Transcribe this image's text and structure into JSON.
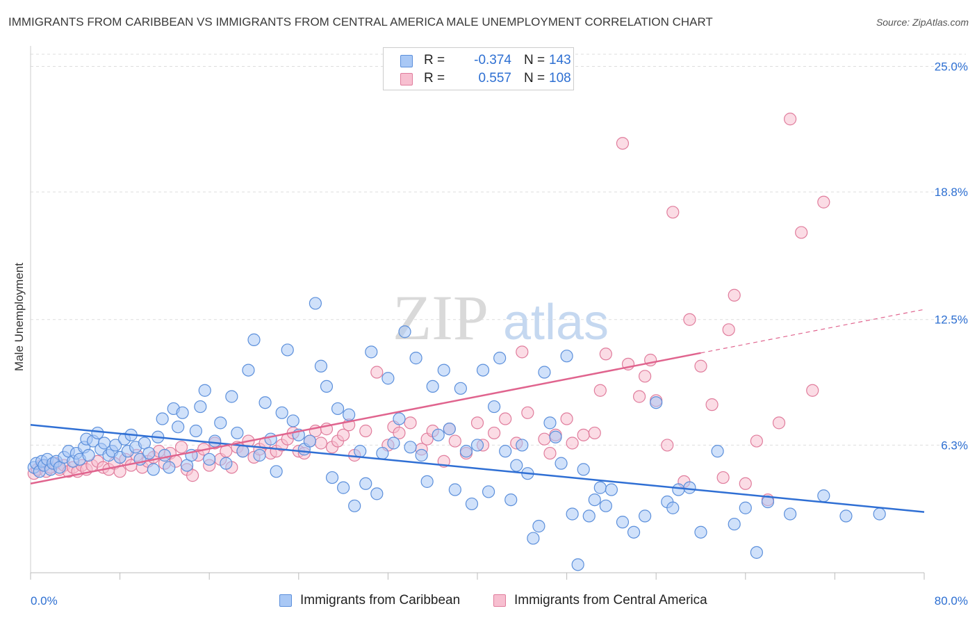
{
  "title": "IMMIGRANTS FROM CARIBBEAN VS IMMIGRANTS FROM CENTRAL AMERICA MALE UNEMPLOYMENT CORRELATION CHART",
  "source": "Source: ZipAtlas.com",
  "watermark": {
    "zip": "ZIP",
    "atlas": "atlas"
  },
  "legend": {
    "rows": [
      {
        "r_label": "R =",
        "r_value": "-0.374",
        "n_label": "N =",
        "n_value": "143"
      },
      {
        "r_label": "R =",
        "r_value": "0.557",
        "n_label": "N =",
        "n_value": "108"
      }
    ]
  },
  "chart_data": {
    "type": "scatter",
    "title": "IMMIGRANTS FROM CARIBBEAN VS IMMIGRANTS FROM CENTRAL AMERICA MALE UNEMPLOYMENT CORRELATION CHART",
    "xlabel": "",
    "ylabel": "Male Unemployment",
    "xlim": [
      0,
      80
    ],
    "ylim": [
      0,
      25.6
    ],
    "x_tick_labels": [
      "0.0%",
      "80.0%"
    ],
    "y_ticks": [
      6.3,
      12.5,
      18.8,
      25.0
    ],
    "y_tick_labels": [
      "6.3%",
      "12.5%",
      "18.8%",
      "25.0%"
    ],
    "grid": "horizontal dashed",
    "legend_position": "top-center",
    "colors": {
      "caribbean_fill": "#a9c8f5",
      "caribbean_stroke": "#5b8fdb",
      "caribbean_line": "#2f6fd4",
      "central_fill": "#f7bfd0",
      "central_stroke": "#e07c9c",
      "central_line": "#e0648e",
      "tick_text": "#2d6fd2"
    },
    "series": [
      {
        "name": "Immigrants from Caribbean",
        "trend": {
          "x": [
            0,
            80
          ],
          "y": [
            7.3,
            3.0
          ],
          "solid_to": 80
        },
        "points": [
          [
            0.3,
            5.2
          ],
          [
            0.5,
            5.4
          ],
          [
            0.8,
            5.0
          ],
          [
            1,
            5.5
          ],
          [
            1.2,
            5.3
          ],
          [
            1.5,
            5.6
          ],
          [
            1.8,
            5.1
          ],
          [
            2,
            5.4
          ],
          [
            2.3,
            5.5
          ],
          [
            2.6,
            5.2
          ],
          [
            3,
            5.7
          ],
          [
            3.4,
            6.0
          ],
          [
            3.8,
            5.5
          ],
          [
            4.1,
            5.9
          ],
          [
            4.4,
            5.6
          ],
          [
            4.8,
            6.2
          ],
          [
            5,
            6.6
          ],
          [
            5.2,
            5.8
          ],
          [
            5.6,
            6.5
          ],
          [
            6,
            6.9
          ],
          [
            6.3,
            6.1
          ],
          [
            6.6,
            6.4
          ],
          [
            7,
            5.8
          ],
          [
            7.3,
            6.0
          ],
          [
            7.6,
            6.3
          ],
          [
            8,
            5.7
          ],
          [
            8.4,
            6.6
          ],
          [
            8.7,
            6.0
          ],
          [
            9,
            6.8
          ],
          [
            9.4,
            6.2
          ],
          [
            9.8,
            5.6
          ],
          [
            10.2,
            6.4
          ],
          [
            10.6,
            5.9
          ],
          [
            11,
            5.1
          ],
          [
            11.4,
            6.7
          ],
          [
            11.8,
            7.6
          ],
          [
            12,
            5.8
          ],
          [
            12.4,
            5.2
          ],
          [
            12.8,
            8.1
          ],
          [
            13.2,
            7.2
          ],
          [
            13.6,
            7.9
          ],
          [
            14,
            5.3
          ],
          [
            14.4,
            5.8
          ],
          [
            14.8,
            7.0
          ],
          [
            15.2,
            8.2
          ],
          [
            15.6,
            9.0
          ],
          [
            16,
            5.6
          ],
          [
            16.5,
            6.5
          ],
          [
            17,
            7.4
          ],
          [
            17.5,
            5.4
          ],
          [
            18,
            8.7
          ],
          [
            18.5,
            6.9
          ],
          [
            19,
            6.0
          ],
          [
            19.5,
            10.0
          ],
          [
            20,
            11.5
          ],
          [
            20.5,
            5.8
          ],
          [
            21,
            8.4
          ],
          [
            21.5,
            6.6
          ],
          [
            22,
            5.0
          ],
          [
            22.5,
            7.9
          ],
          [
            23,
            11.0
          ],
          [
            23.5,
            7.5
          ],
          [
            24,
            6.8
          ],
          [
            24.5,
            6.1
          ],
          [
            25,
            6.5
          ],
          [
            25.5,
            13.3
          ],
          [
            26,
            10.2
          ],
          [
            26.5,
            9.2
          ],
          [
            27,
            4.7
          ],
          [
            27.5,
            8.1
          ],
          [
            28,
            4.2
          ],
          [
            28.5,
            7.8
          ],
          [
            29,
            3.3
          ],
          [
            29.5,
            6.0
          ],
          [
            30,
            4.4
          ],
          [
            30.5,
            10.9
          ],
          [
            31,
            3.9
          ],
          [
            31.5,
            5.9
          ],
          [
            32,
            9.6
          ],
          [
            32.5,
            6.4
          ],
          [
            33,
            7.6
          ],
          [
            33.5,
            11.9
          ],
          [
            34,
            6.2
          ],
          [
            34.5,
            10.6
          ],
          [
            35,
            5.8
          ],
          [
            35.5,
            4.5
          ],
          [
            36,
            9.2
          ],
          [
            36.5,
            6.8
          ],
          [
            37,
            10.0
          ],
          [
            37.5,
            7.1
          ],
          [
            38,
            4.1
          ],
          [
            38.5,
            9.1
          ],
          [
            39,
            6.0
          ],
          [
            39.5,
            3.4
          ],
          [
            40,
            6.3
          ],
          [
            40.5,
            10.0
          ],
          [
            41,
            4.0
          ],
          [
            41.5,
            8.2
          ],
          [
            42,
            10.6
          ],
          [
            42.5,
            6.0
          ],
          [
            43,
            3.6
          ],
          [
            43.5,
            5.3
          ],
          [
            44,
            6.3
          ],
          [
            44.5,
            4.9
          ],
          [
            45,
            1.7
          ],
          [
            45.5,
            2.3
          ],
          [
            46,
            9.9
          ],
          [
            46.5,
            7.4
          ],
          [
            47,
            6.7
          ],
          [
            47.5,
            5.4
          ],
          [
            48,
            10.7
          ],
          [
            48.5,
            2.9
          ],
          [
            49,
            0.4
          ],
          [
            49.5,
            5.1
          ],
          [
            50,
            2.8
          ],
          [
            50.5,
            3.6
          ],
          [
            51,
            4.2
          ],
          [
            51.5,
            3.3
          ],
          [
            52,
            4.1
          ],
          [
            53,
            2.5
          ],
          [
            54,
            2.0
          ],
          [
            55,
            2.8
          ],
          [
            56,
            8.4
          ],
          [
            57,
            3.5
          ],
          [
            57.5,
            3.2
          ],
          [
            58,
            4.1
          ],
          [
            59,
            4.2
          ],
          [
            60,
            2.0
          ],
          [
            61.5,
            6.0
          ],
          [
            63,
            2.4
          ],
          [
            64,
            3.2
          ],
          [
            65,
            1.0
          ],
          [
            66,
            3.5
          ],
          [
            68,
            2.9
          ],
          [
            71,
            3.8
          ],
          [
            73,
            2.8
          ],
          [
            76,
            2.9
          ]
        ]
      },
      {
        "name": "Immigrants from Central America",
        "trend": {
          "x": [
            0,
            80
          ],
          "y": [
            4.4,
            13.0
          ],
          "solid_to": 60
        },
        "points": [
          [
            0.3,
            4.9
          ],
          [
            0.6,
            5.1
          ],
          [
            1,
            5.3
          ],
          [
            1.4,
            5.0
          ],
          [
            1.8,
            5.2
          ],
          [
            2.2,
            5.4
          ],
          [
            2.6,
            5.1
          ],
          [
            3,
            5.3
          ],
          [
            3.4,
            5.0
          ],
          [
            3.8,
            5.2
          ],
          [
            4.2,
            5.0
          ],
          [
            4.6,
            5.3
          ],
          [
            5,
            5.1
          ],
          [
            5.5,
            5.3
          ],
          [
            6,
            5.5
          ],
          [
            6.5,
            5.2
          ],
          [
            7,
            5.1
          ],
          [
            7.5,
            5.4
          ],
          [
            8,
            5.0
          ],
          [
            8.5,
            5.6
          ],
          [
            9,
            5.3
          ],
          [
            9.5,
            5.8
          ],
          [
            10,
            5.2
          ],
          [
            10.5,
            5.5
          ],
          [
            11,
            5.7
          ],
          [
            11.5,
            6.0
          ],
          [
            12,
            5.4
          ],
          [
            12.5,
            5.9
          ],
          [
            13,
            5.5
          ],
          [
            13.5,
            6.2
          ],
          [
            14,
            5.1
          ],
          [
            14.5,
            4.8
          ],
          [
            15,
            5.8
          ],
          [
            15.5,
            6.1
          ],
          [
            16,
            5.3
          ],
          [
            16.5,
            6.4
          ],
          [
            17,
            5.6
          ],
          [
            17.5,
            6.0
          ],
          [
            18,
            5.2
          ],
          [
            18.5,
            6.2
          ],
          [
            19,
            6.0
          ],
          [
            19.5,
            6.5
          ],
          [
            20,
            5.7
          ],
          [
            20.5,
            6.1
          ],
          [
            21,
            6.4
          ],
          [
            21.5,
            5.9
          ],
          [
            22,
            6.0
          ],
          [
            22.5,
            6.3
          ],
          [
            23,
            6.6
          ],
          [
            23.5,
            6.9
          ],
          [
            24,
            6.0
          ],
          [
            24.5,
            5.9
          ],
          [
            25,
            6.5
          ],
          [
            25.5,
            7.0
          ],
          [
            26,
            6.4
          ],
          [
            26.5,
            7.1
          ],
          [
            27,
            6.2
          ],
          [
            27.5,
            6.5
          ],
          [
            28,
            6.8
          ],
          [
            28.5,
            7.3
          ],
          [
            29,
            5.8
          ],
          [
            30,
            7.0
          ],
          [
            31,
            9.9
          ],
          [
            32,
            6.3
          ],
          [
            32.5,
            7.2
          ],
          [
            33,
            6.9
          ],
          [
            34,
            7.4
          ],
          [
            35,
            6.1
          ],
          [
            35.5,
            6.6
          ],
          [
            36,
            7.0
          ],
          [
            37,
            5.5
          ],
          [
            37.5,
            7.1
          ],
          [
            38,
            6.5
          ],
          [
            39,
            5.9
          ],
          [
            40,
            7.4
          ],
          [
            40.5,
            6.3
          ],
          [
            41.5,
            6.9
          ],
          [
            42.5,
            7.6
          ],
          [
            43.5,
            6.4
          ],
          [
            44,
            10.9
          ],
          [
            44.5,
            7.9
          ],
          [
            46,
            6.6
          ],
          [
            46.5,
            5.9
          ],
          [
            47,
            6.8
          ],
          [
            48,
            7.6
          ],
          [
            48.5,
            6.4
          ],
          [
            49.5,
            6.8
          ],
          [
            50.5,
            6.9
          ],
          [
            51,
            9.0
          ],
          [
            51.5,
            10.8
          ],
          [
            53,
            21.2
          ],
          [
            53.5,
            10.3
          ],
          [
            54.5,
            8.7
          ],
          [
            55,
            9.7
          ],
          [
            55.5,
            10.5
          ],
          [
            56,
            8.5
          ],
          [
            57,
            6.3
          ],
          [
            57.5,
            17.8
          ],
          [
            58.5,
            4.5
          ],
          [
            59,
            12.5
          ],
          [
            60,
            10.2
          ],
          [
            61,
            8.3
          ],
          [
            62,
            4.7
          ],
          [
            62.5,
            12.0
          ],
          [
            63,
            13.7
          ],
          [
            64,
            4.4
          ],
          [
            65,
            6.5
          ],
          [
            66,
            3.6
          ],
          [
            67,
            7.4
          ],
          [
            68,
            22.4
          ],
          [
            69,
            16.8
          ],
          [
            70,
            9.0
          ],
          [
            71,
            18.3
          ]
        ]
      }
    ]
  },
  "bottom_legend": [
    {
      "label": "Immigrants from Caribbean"
    },
    {
      "label": "Immigrants from Central America"
    }
  ]
}
